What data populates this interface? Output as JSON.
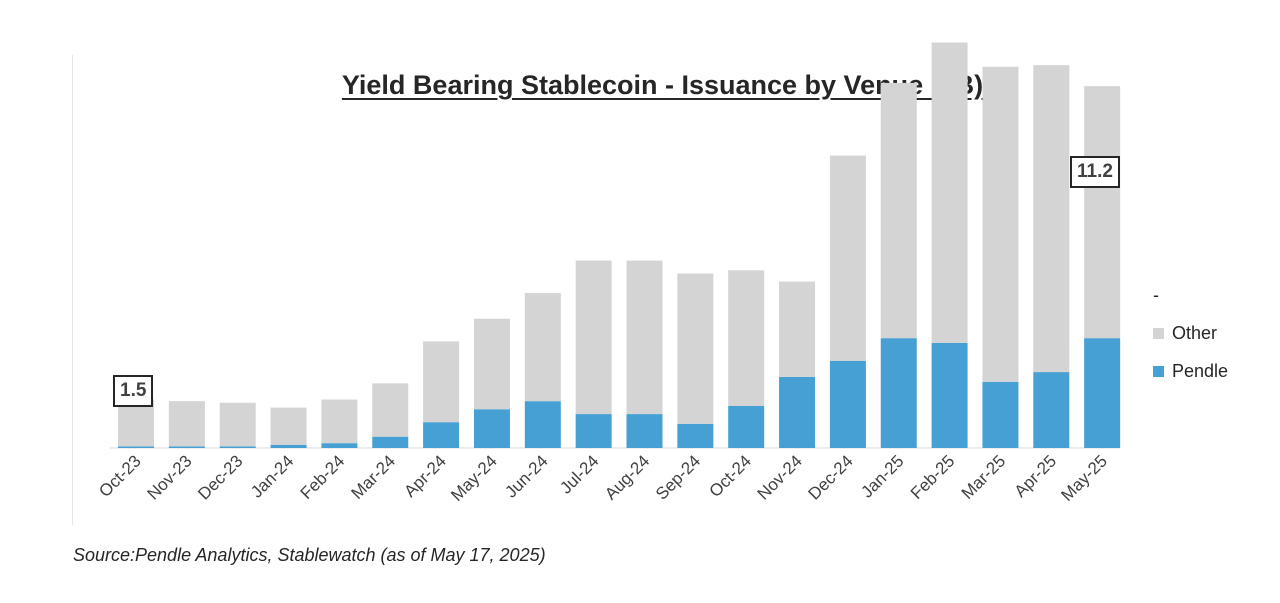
{
  "chart_data": {
    "type": "bar",
    "stacked": true,
    "title": "Yield Bearing Stablecoin - Issuance by Venue ($B)",
    "categories": [
      "Oct-23",
      "Nov-23",
      "Dec-23",
      "Jan-24",
      "Feb-24",
      "Mar-24",
      "Apr-24",
      "May-24",
      "Jun-24",
      "Jul-24",
      "Aug-24",
      "Sep-24",
      "Oct-24",
      "Nov-24",
      "Dec-24",
      "Jan-25",
      "Feb-25",
      "Mar-25",
      "Apr-25",
      "May-25"
    ],
    "series": [
      {
        "name": "Pendle",
        "color": "#46a0d4",
        "values": [
          0.05,
          0.05,
          0.05,
          0.1,
          0.15,
          0.35,
          0.8,
          1.2,
          1.45,
          1.05,
          1.05,
          0.75,
          1.3,
          2.2,
          2.7,
          3.4,
          3.25,
          2.05,
          2.35,
          3.4
        ]
      },
      {
        "name": "Other",
        "color": "#d4d4d4",
        "values": [
          1.45,
          1.4,
          1.35,
          1.15,
          1.35,
          1.65,
          2.5,
          2.8,
          3.35,
          4.75,
          4.75,
          4.65,
          4.2,
          2.95,
          6.35,
          7.9,
          9.3,
          9.75,
          9.5,
          7.8
        ]
      }
    ],
    "ylim": [
      0,
      13
    ],
    "annotations": {
      "first": "1.5",
      "last": "11.2"
    },
    "legend_position": "right",
    "legend_extra_label": "-",
    "grid": false
  },
  "source_note": "Source:Pendle Analytics, Stablewatch (as of May 17, 2025)"
}
